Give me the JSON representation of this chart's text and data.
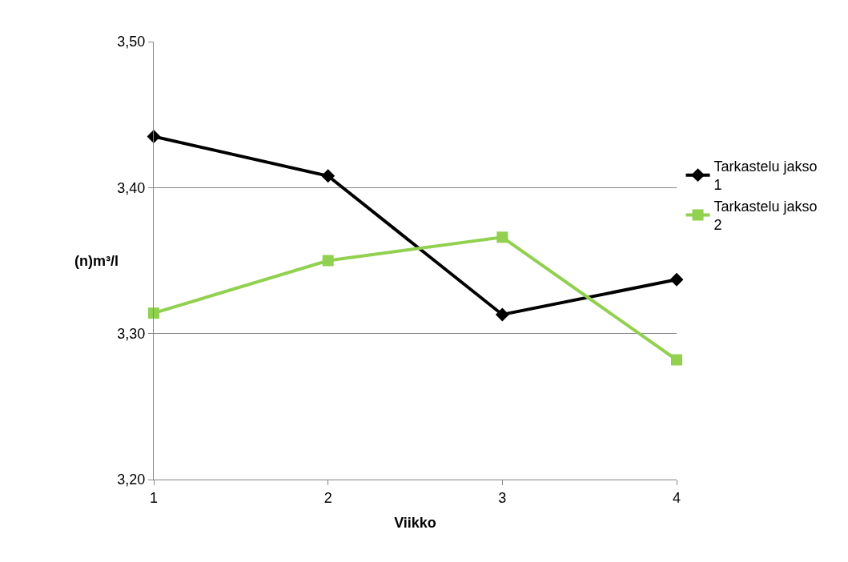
{
  "chart_data": {
    "type": "line",
    "xlabel": "Viikko",
    "ylabel": "(n)m³/l",
    "x": [
      1,
      2,
      3,
      4
    ],
    "xlim": [
      1,
      4
    ],
    "xticks": [
      1,
      2,
      3,
      4
    ],
    "ylim": [
      3.2,
      3.5
    ],
    "yticks": [
      {
        "value": 3.2,
        "label": "3,20"
      },
      {
        "value": 3.3,
        "label": "3,30"
      },
      {
        "value": 3.4,
        "label": "3,40"
      },
      {
        "value": 3.5,
        "label": "3,50"
      }
    ],
    "grid": "y",
    "legend": "right",
    "line_style": "solid",
    "series": [
      {
        "name": "Tarkastelu jakso 1",
        "color": "#000000",
        "marker": "diamond",
        "values": [
          3.435,
          3.408,
          3.313,
          3.337
        ]
      },
      {
        "name": "Tarkastelu jakso 2",
        "color": "#92d050",
        "marker": "square",
        "values": [
          3.314,
          3.35,
          3.366,
          3.282
        ]
      }
    ]
  }
}
